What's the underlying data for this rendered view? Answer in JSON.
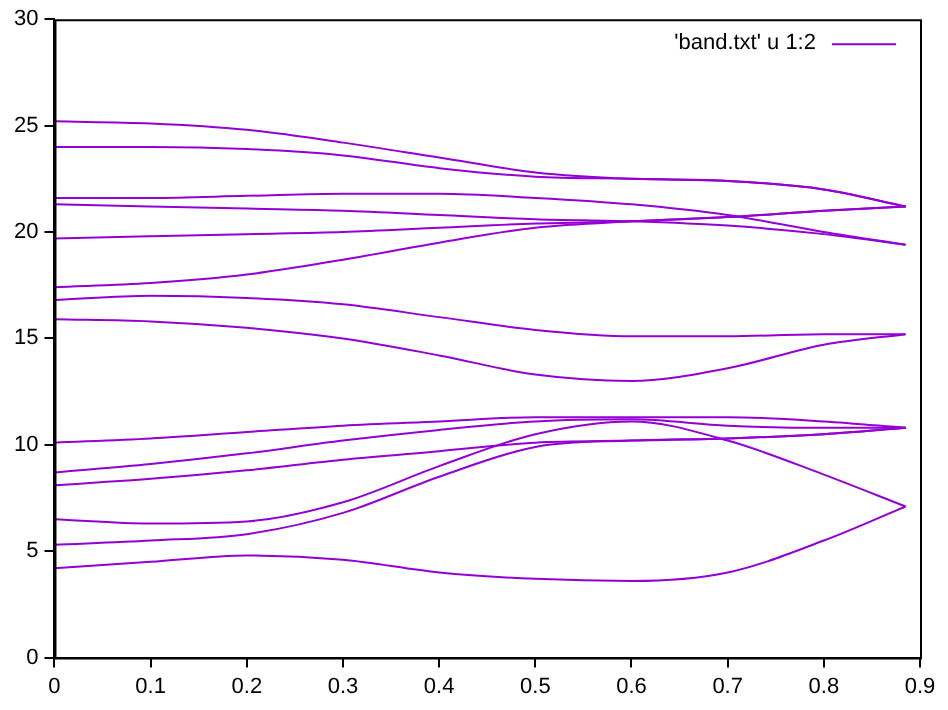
{
  "chart_data": {
    "type": "line",
    "xlim": [
      0,
      0.9
    ],
    "ylim": [
      0,
      30
    ],
    "xticks": [
      0,
      0.1,
      0.2,
      0.3,
      0.4,
      0.5,
      0.6,
      0.7,
      0.8,
      0.9
    ],
    "yticks": [
      0,
      5,
      10,
      15,
      20,
      25,
      30
    ],
    "grid": false,
    "legend": "top right",
    "x": [
      0,
      0.1,
      0.2,
      0.3,
      0.4,
      0.5,
      0.6,
      0.7,
      0.8,
      0.885
    ],
    "series": [
      {
        "name": "'band.txt' u 1:2",
        "color": "#9400d3",
        "values": [
          4.2,
          4.5,
          4.8,
          4.6,
          4.0,
          3.7,
          3.6,
          4.0,
          5.5,
          7.1
        ]
      },
      {
        "color": "#9400d3",
        "values": [
          5.3,
          5.5,
          5.8,
          6.8,
          8.5,
          9.9,
          10.2,
          10.3,
          10.5,
          10.8
        ]
      },
      {
        "color": "#9400d3",
        "values": [
          6.5,
          6.3,
          6.4,
          7.3,
          9.0,
          10.5,
          11.1,
          10.2,
          8.6,
          7.1
        ]
      },
      {
        "color": "#9400d3",
        "values": [
          8.1,
          8.4,
          8.8,
          9.3,
          9.7,
          10.1,
          10.2,
          10.3,
          10.5,
          10.8
        ]
      },
      {
        "color": "#9400d3",
        "values": [
          8.7,
          9.1,
          9.6,
          10.2,
          10.7,
          11.1,
          11.2,
          10.9,
          10.8,
          10.8
        ]
      },
      {
        "color": "#9400d3",
        "values": [
          10.1,
          10.3,
          10.6,
          10.9,
          11.1,
          11.3,
          11.3,
          11.3,
          11.1,
          10.8
        ]
      },
      {
        "color": "#9400d3",
        "values": [
          15.9,
          15.8,
          15.5,
          15.0,
          14.2,
          13.3,
          13.0,
          13.6,
          14.7,
          15.2
        ]
      },
      {
        "color": "#9400d3",
        "values": [
          16.8,
          17.0,
          16.9,
          16.6,
          16.0,
          15.4,
          15.1,
          15.1,
          15.2,
          15.2
        ]
      },
      {
        "color": "#9400d3",
        "values": [
          17.4,
          17.6,
          18.0,
          18.7,
          19.5,
          20.2,
          20.5,
          20.7,
          21.0,
          21.2
        ]
      },
      {
        "color": "#9400d3",
        "values": [
          19.7,
          19.8,
          19.9,
          20.0,
          20.2,
          20.4,
          20.5,
          20.7,
          21.0,
          21.2
        ]
      },
      {
        "color": "#9400d3",
        "values": [
          21.3,
          21.2,
          21.1,
          21.0,
          20.8,
          20.6,
          20.5,
          20.3,
          19.9,
          19.4
        ]
      },
      {
        "color": "#9400d3",
        "values": [
          21.6,
          21.6,
          21.7,
          21.8,
          21.8,
          21.6,
          21.3,
          20.8,
          20.0,
          19.4
        ]
      },
      {
        "color": "#9400d3",
        "values": [
          24.0,
          24.0,
          23.9,
          23.6,
          23.0,
          22.6,
          22.5,
          22.4,
          22.0,
          21.2
        ]
      },
      {
        "color": "#9400d3",
        "values": [
          25.2,
          25.1,
          24.8,
          24.2,
          23.5,
          22.8,
          22.5,
          22.4,
          22.0,
          21.2
        ]
      }
    ]
  }
}
